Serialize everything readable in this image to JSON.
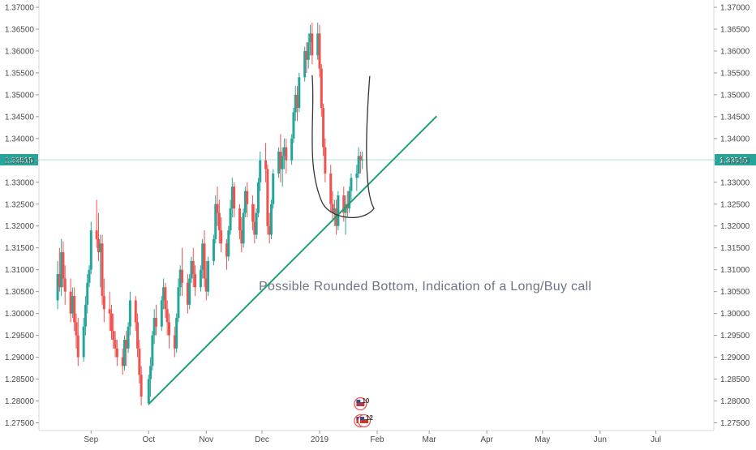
{
  "chart_data": {
    "type": "candlestick",
    "y_axis": {
      "ticks": [
        "1.27500",
        "1.28000",
        "1.28500",
        "1.29000",
        "1.29500",
        "1.30000",
        "1.30500",
        "1.31000",
        "1.31500",
        "1.32000",
        "1.32500",
        "1.33000",
        "1.33500",
        "1.34000",
        "1.34500",
        "1.35000",
        "1.35500",
        "1.36000",
        "1.36500",
        "1.37000"
      ],
      "range": [
        1.2725,
        1.3718
      ],
      "sides": "left and right"
    },
    "x_axis": {
      "ticks": [
        "Sep",
        "Oct",
        "Nov",
        "Dec",
        "2019",
        "Feb",
        "Mar",
        "Apr",
        "May",
        "Jun",
        "Jul"
      ]
    },
    "current_price": {
      "label": "1.33515",
      "value": 1.33515,
      "color": "#26a69a"
    },
    "annotation": "Possible Rounded Bottom, Indication of a Long/Buy call",
    "trendline": {
      "from": {
        "date": "2018-10-01",
        "value": 1.2793
      },
      "to": {
        "date": "2019-03-05",
        "value": 1.3451
      },
      "color": "#1f9e6e"
    },
    "rounded_bottom": {
      "left_top": {
        "date": "2018-12-28",
        "value": 1.3545
      },
      "bottom": {
        "date": "2019-01-15",
        "value": 1.3218
      },
      "right_top": {
        "date": "2019-01-28",
        "value": 1.3543
      },
      "color": "#333333"
    },
    "events": [
      {
        "label": "10",
        "date": "2019-01-23",
        "flag": "us",
        "row": 1
      },
      {
        "label": "9",
        "date": "2019-01-23",
        "flag": "us",
        "row": 2
      },
      {
        "label": "12",
        "date": "2019-01-25",
        "flag": "uk",
        "row": 2
      }
    ],
    "candle_colors": {
      "up": "#26a69a",
      "down": "#ef5350"
    },
    "grid": false,
    "candles": [
      [
        "2018-08-13",
        1.303,
        1.312,
        1.301,
        1.309
      ],
      [
        "2018-08-14",
        1.309,
        1.315,
        1.305,
        1.306
      ],
      [
        "2018-08-15",
        1.306,
        1.317,
        1.304,
        1.314
      ],
      [
        "2018-08-16",
        1.314,
        1.3165,
        1.306,
        1.308
      ],
      [
        "2018-08-17",
        1.308,
        1.311,
        1.302,
        1.305
      ],
      [
        "2018-08-20",
        1.305,
        1.308,
        1.298,
        1.3
      ],
      [
        "2018-08-21",
        1.3,
        1.306,
        1.299,
        1.304
      ],
      [
        "2018-08-22",
        1.304,
        1.306,
        1.296,
        1.298
      ],
      [
        "2018-08-23",
        1.298,
        1.3,
        1.292,
        1.295
      ],
      [
        "2018-08-24",
        1.295,
        1.299,
        1.288,
        1.29
      ],
      [
        "2018-08-27",
        1.29,
        1.299,
        1.289,
        1.297
      ],
      [
        "2018-08-28",
        1.297,
        1.304,
        1.295,
        1.302
      ],
      [
        "2018-08-29",
        1.302,
        1.309,
        1.3,
        1.307
      ],
      [
        "2018-08-30",
        1.307,
        1.311,
        1.306,
        1.31
      ],
      [
        "2018-08-31",
        1.31,
        1.321,
        1.309,
        1.319
      ],
      [
        "2018-09-03",
        1.319,
        1.326,
        1.315,
        1.317
      ],
      [
        "2018-09-04",
        1.317,
        1.323,
        1.312,
        1.314
      ],
      [
        "2018-09-05",
        1.314,
        1.318,
        1.306,
        1.316
      ],
      [
        "2018-09-06",
        1.316,
        1.318,
        1.302,
        1.304
      ],
      [
        "2018-09-07",
        1.304,
        1.308,
        1.298,
        1.301
      ],
      [
        "2018-09-10",
        1.301,
        1.305,
        1.296,
        1.3
      ],
      [
        "2018-09-11",
        1.3,
        1.302,
        1.294,
        1.296
      ],
      [
        "2018-09-12",
        1.296,
        1.3,
        1.292,
        1.294
      ],
      [
        "2018-09-13",
        1.294,
        1.296,
        1.29,
        1.292
      ],
      [
        "2018-09-14",
        1.292,
        1.294,
        1.288,
        1.29
      ],
      [
        "2018-09-17",
        1.29,
        1.292,
        1.286,
        1.288
      ],
      [
        "2018-09-18",
        1.288,
        1.295,
        1.287,
        1.294
      ],
      [
        "2018-09-19",
        1.294,
        1.296,
        1.288,
        1.292
      ],
      [
        "2018-09-20",
        1.292,
        1.298,
        1.291,
        1.297
      ],
      [
        "2018-09-21",
        1.297,
        1.305,
        1.295,
        1.303
      ],
      [
        "2018-09-24",
        1.303,
        1.304,
        1.296,
        1.298
      ],
      [
        "2018-09-25",
        1.298,
        1.3,
        1.29,
        1.292
      ],
      [
        "2018-09-26",
        1.292,
        1.294,
        1.284,
        1.286
      ],
      [
        "2018-09-27",
        1.286,
        1.288,
        1.279,
        1.281
      ],
      [
        "2018-10-01",
        1.2795,
        1.286,
        1.279,
        1.285
      ],
      [
        "2018-10-02",
        1.285,
        1.29,
        1.281,
        1.288
      ],
      [
        "2018-10-03",
        1.288,
        1.296,
        1.287,
        1.295
      ],
      [
        "2018-10-04",
        1.295,
        1.301,
        1.293,
        1.299
      ],
      [
        "2018-10-05",
        1.299,
        1.302,
        1.295,
        1.297
      ],
      [
        "2018-10-08",
        1.297,
        1.304,
        1.296,
        1.303
      ],
      [
        "2018-10-09",
        1.303,
        1.308,
        1.301,
        1.306
      ],
      [
        "2018-10-10",
        1.306,
        1.307,
        1.299,
        1.301
      ],
      [
        "2018-10-11",
        1.301,
        1.303,
        1.295,
        1.298
      ],
      [
        "2018-10-12",
        1.298,
        1.3,
        1.292,
        1.295
      ],
      [
        "2018-10-15",
        1.295,
        1.297,
        1.29,
        1.292
      ],
      [
        "2018-10-16",
        1.292,
        1.3,
        1.291,
        1.299
      ],
      [
        "2018-10-17",
        1.299,
        1.308,
        1.298,
        1.306
      ],
      [
        "2018-10-18",
        1.306,
        1.311,
        1.304,
        1.31
      ],
      [
        "2018-10-19",
        1.31,
        1.315,
        1.304,
        1.307
      ],
      [
        "2018-10-22",
        1.307,
        1.309,
        1.3,
        1.302
      ],
      [
        "2018-10-23",
        1.302,
        1.309,
        1.301,
        1.308
      ],
      [
        "2018-10-24",
        1.308,
        1.313,
        1.307,
        1.312
      ],
      [
        "2018-10-25",
        1.312,
        1.315,
        1.306,
        1.309
      ],
      [
        "2018-10-26",
        1.309,
        1.311,
        1.304,
        1.306
      ],
      [
        "2018-10-29",
        1.306,
        1.311,
        1.305,
        1.31
      ],
      [
        "2018-10-30",
        1.31,
        1.317,
        1.308,
        1.316
      ],
      [
        "2018-10-31",
        1.316,
        1.319,
        1.306,
        1.308
      ],
      [
        "2018-11-01",
        1.308,
        1.312,
        1.303,
        1.305
      ],
      [
        "2018-11-02",
        1.305,
        1.313,
        1.304,
        1.312
      ],
      [
        "2018-11-05",
        1.312,
        1.318,
        1.311,
        1.317
      ],
      [
        "2018-11-06",
        1.317,
        1.327,
        1.316,
        1.325
      ],
      [
        "2018-11-07",
        1.325,
        1.329,
        1.32,
        1.323
      ],
      [
        "2018-11-08",
        1.323,
        1.326,
        1.316,
        1.319
      ],
      [
        "2018-11-09",
        1.319,
        1.322,
        1.314,
        1.316
      ],
      [
        "2018-11-12",
        1.316,
        1.317,
        1.31,
        1.313
      ],
      [
        "2018-11-13",
        1.313,
        1.32,
        1.312,
        1.319
      ],
      [
        "2018-11-14",
        1.319,
        1.326,
        1.318,
        1.324
      ],
      [
        "2018-11-15",
        1.324,
        1.331,
        1.322,
        1.329
      ],
      [
        "2018-11-16",
        1.329,
        1.33,
        1.322,
        1.324
      ],
      [
        "2018-11-19",
        1.324,
        1.325,
        1.317,
        1.319
      ],
      [
        "2018-11-20",
        1.319,
        1.322,
        1.314,
        1.316
      ],
      [
        "2018-11-21",
        1.316,
        1.324,
        1.315,
        1.323
      ],
      [
        "2018-11-22",
        1.323,
        1.329,
        1.322,
        1.328
      ],
      [
        "2018-11-23",
        1.328,
        1.33,
        1.322,
        1.325
      ],
      [
        "2018-11-26",
        1.325,
        1.327,
        1.319,
        1.321
      ],
      [
        "2018-11-27",
        1.321,
        1.325,
        1.316,
        1.318
      ],
      [
        "2018-11-28",
        1.318,
        1.324,
        1.317,
        1.323
      ],
      [
        "2018-11-29",
        1.323,
        1.331,
        1.322,
        1.33
      ],
      [
        "2018-11-30",
        1.33,
        1.337,
        1.328,
        1.335
      ],
      [
        "2018-12-03",
        1.335,
        1.339,
        1.33,
        1.333
      ],
      [
        "2018-12-04",
        1.333,
        1.334,
        1.318,
        1.32
      ],
      [
        "2018-12-05",
        1.32,
        1.323,
        1.316,
        1.318
      ],
      [
        "2018-12-06",
        1.318,
        1.326,
        1.317,
        1.325
      ],
      [
        "2018-12-07",
        1.325,
        1.333,
        1.324,
        1.332
      ],
      [
        "2018-12-10",
        1.332,
        1.338,
        1.331,
        1.337
      ],
      [
        "2018-12-11",
        1.337,
        1.341,
        1.33,
        1.333
      ],
      [
        "2018-12-12",
        1.333,
        1.338,
        1.329,
        1.336
      ],
      [
        "2018-12-13",
        1.336,
        1.34,
        1.333,
        1.338
      ],
      [
        "2018-12-14",
        1.338,
        1.34,
        1.332,
        1.335
      ],
      [
        "2018-12-17",
        1.335,
        1.341,
        1.334,
        1.34
      ],
      [
        "2018-12-18",
        1.34,
        1.347,
        1.339,
        1.346
      ],
      [
        "2018-12-19",
        1.346,
        1.352,
        1.344,
        1.35
      ],
      [
        "2018-12-20",
        1.35,
        1.352,
        1.344,
        1.347
      ],
      [
        "2018-12-21",
        1.347,
        1.355,
        1.346,
        1.354
      ],
      [
        "2018-12-24",
        1.354,
        1.361,
        1.353,
        1.36
      ],
      [
        "2018-12-25",
        1.36,
        1.362,
        1.355,
        1.358
      ],
      [
        "2018-12-26",
        1.358,
        1.364,
        1.356,
        1.362
      ],
      [
        "2018-12-27",
        1.362,
        1.366,
        1.359,
        1.364
      ],
      [
        "2018-12-28",
        1.364,
        1.3665,
        1.357,
        1.359
      ],
      [
        "2018-12-31",
        1.359,
        1.3665,
        1.358,
        1.364
      ],
      [
        "2019-01-01",
        1.364,
        1.366,
        1.354,
        1.356
      ],
      [
        "2019-01-02",
        1.356,
        1.357,
        1.345,
        1.347
      ],
      [
        "2019-01-03",
        1.347,
        1.348,
        1.336,
        1.338
      ],
      [
        "2019-01-04",
        1.338,
        1.34,
        1.33,
        1.332
      ],
      [
        "2019-01-07",
        1.332,
        1.334,
        1.323,
        1.325
      ],
      [
        "2019-01-08",
        1.325,
        1.328,
        1.321,
        1.323
      ],
      [
        "2019-01-09",
        1.323,
        1.326,
        1.32,
        1.324
      ],
      [
        "2019-01-10",
        1.324,
        1.326,
        1.318,
        1.32
      ],
      [
        "2019-01-11",
        1.32,
        1.328,
        1.319,
        1.327
      ],
      [
        "2019-01-14",
        1.327,
        1.329,
        1.321,
        1.323
      ],
      [
        "2019-01-15",
        1.323,
        1.327,
        1.318,
        1.325
      ],
      [
        "2019-01-16",
        1.325,
        1.328,
        1.322,
        1.324
      ],
      [
        "2019-01-17",
        1.324,
        1.329,
        1.323,
        1.328
      ],
      [
        "2019-01-18",
        1.328,
        1.332,
        1.326,
        1.331
      ],
      [
        "2019-01-21",
        1.331,
        1.334,
        1.328,
        1.332
      ],
      [
        "2019-01-22",
        1.332,
        1.338,
        1.331,
        1.336
      ],
      [
        "2019-01-23",
        1.336,
        1.337,
        1.332,
        1.335
      ],
      [
        "2019-01-24",
        1.335,
        1.337,
        1.333,
        1.3352
      ]
    ]
  }
}
